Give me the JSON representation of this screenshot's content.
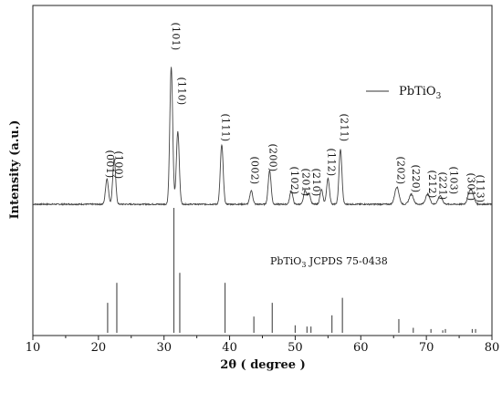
{
  "chart_data": {
    "type": "line",
    "xlabel": "2θ ( degree )",
    "ylabel": "Intensity (a.u.)",
    "xlim": [
      10,
      80
    ],
    "x_ticks": [
      "10",
      "20",
      "30",
      "40",
      "50",
      "60",
      "70",
      "80"
    ],
    "grid": false,
    "legend": {
      "label": "PbTiO",
      "subscript": "3",
      "placement": "top-right"
    },
    "reference_label": {
      "text_pre": "PbTiO",
      "subscript": "3",
      "text_post": " JCPDS 75-0438"
    },
    "peak_labels": [
      {
        "label": "(001)",
        "x": 21.3
      },
      {
        "label": "(100)",
        "x": 22.6
      },
      {
        "label": "(101)",
        "x": 31.3
      },
      {
        "label": "(110)",
        "x": 32.2
      },
      {
        "label": "(111)",
        "x": 38.9
      },
      {
        "label": "(002)",
        "x": 43.3
      },
      {
        "label": "(200)",
        "x": 46.1
      },
      {
        "label": "(102)",
        "x": 49.4
      },
      {
        "label": "(201)",
        "x": 51.1
      },
      {
        "label": "(210)",
        "x": 52.7
      },
      {
        "label": "(112)",
        "x": 55.0
      },
      {
        "label": "(211)",
        "x": 57.0
      },
      {
        "label": "(202)",
        "x": 65.6
      },
      {
        "label": "(220)",
        "x": 67.9
      },
      {
        "label": "(212)",
        "x": 70.4
      },
      {
        "label": "(221)",
        "x": 72.0
      },
      {
        "label": "(103)",
        "x": 73.7
      },
      {
        "label": "(301)",
        "x": 76.3
      },
      {
        "label": "(113)",
        "x": 77.7
      }
    ],
    "series": [
      {
        "name": "PbTiO3",
        "peaks": [
          {
            "x": 21.3,
            "y": 28
          },
          {
            "x": 22.4,
            "y": 50
          },
          {
            "x": 31.1,
            "y": 150
          },
          {
            "x": 32.1,
            "y": 80
          },
          {
            "x": 38.8,
            "y": 65
          },
          {
            "x": 43.3,
            "y": 15
          },
          {
            "x": 46.1,
            "y": 37
          },
          {
            "x": 49.4,
            "y": 15
          },
          {
            "x": 51.5,
            "y": 15
          },
          {
            "x": 52.1,
            "y": 12
          },
          {
            "x": 54.0,
            "y": 16
          },
          {
            "x": 55.0,
            "y": 28
          },
          {
            "x": 56.9,
            "y": 60
          },
          {
            "x": 65.5,
            "y": 19
          },
          {
            "x": 67.7,
            "y": 11
          },
          {
            "x": 70.2,
            "y": 11
          },
          {
            "x": 72.1,
            "y": 9
          },
          {
            "x": 76.6,
            "y": 11
          },
          {
            "x": 77.0,
            "y": 9
          }
        ]
      },
      {
        "name": "JCPDS 75-0438",
        "type": "stick",
        "sticks": [
          {
            "x": 21.4,
            "y": 24
          },
          {
            "x": 22.8,
            "y": 40
          },
          {
            "x": 31.5,
            "y": 100
          },
          {
            "x": 32.4,
            "y": 48
          },
          {
            "x": 39.3,
            "y": 40
          },
          {
            "x": 43.7,
            "y": 13
          },
          {
            "x": 46.5,
            "y": 24
          },
          {
            "x": 50.0,
            "y": 6
          },
          {
            "x": 51.8,
            "y": 5
          },
          {
            "x": 52.4,
            "y": 5
          },
          {
            "x": 55.6,
            "y": 14
          },
          {
            "x": 57.2,
            "y": 28
          },
          {
            "x": 65.8,
            "y": 11
          },
          {
            "x": 68.0,
            "y": 4
          },
          {
            "x": 70.7,
            "y": 3
          },
          {
            "x": 72.5,
            "y": 2
          },
          {
            "x": 72.9,
            "y": 3
          },
          {
            "x": 77.0,
            "y": 3
          },
          {
            "x": 77.5,
            "y": 3
          }
        ]
      }
    ]
  }
}
